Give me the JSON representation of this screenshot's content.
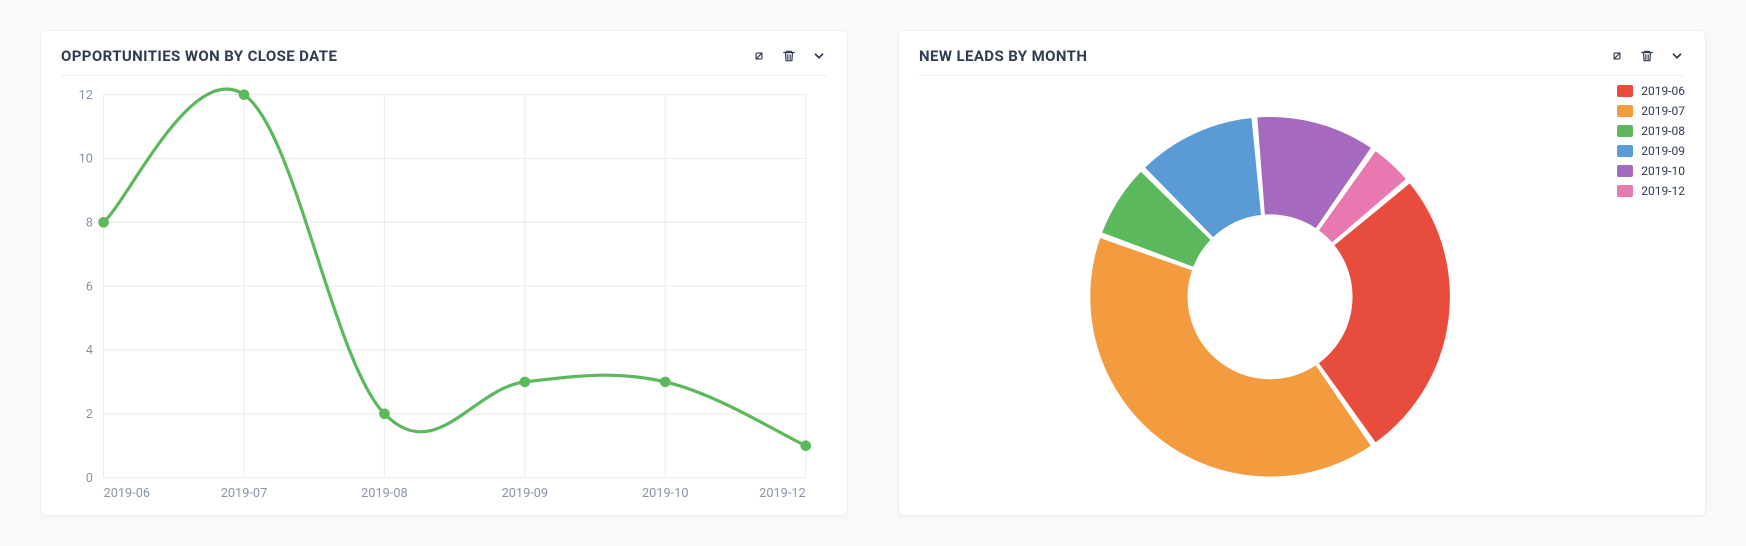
{
  "background_color": "#f8f9fb",
  "card_bg": "#ffffff",
  "title_color": "#2f3b52",
  "axis_text_color": "#8a94a6",
  "grid_color": "#e9ecf2",
  "line_chart": {
    "title": "OPPORTUNITIES WON BY CLOSE DATE",
    "type": "line",
    "categories": [
      "2019-06",
      "2019-07",
      "2019-08",
      "2019-09",
      "2019-10",
      "2019-12"
    ],
    "values": [
      8,
      12,
      2,
      3,
      3,
      1
    ],
    "ylim": [
      0,
      12
    ],
    "ytick_step": 2,
    "line_color": "#5cb85c",
    "line_width": 3,
    "marker_size": 5,
    "background_color": "#ffffff"
  },
  "donut_chart": {
    "title": "NEW LEADS BY MONTH",
    "type": "donut",
    "inner_radius_ratio": 0.45,
    "slice_gap_deg": 1.2,
    "background_color": "#ffffff",
    "start_angle_deg": 50,
    "direction": "clockwise",
    "slices": [
      {
        "label": "2019-06",
        "value": 95,
        "color": "#e74c3c"
      },
      {
        "label": "2019-07",
        "value": 145,
        "color": "#f39c3f"
      },
      {
        "label": "2019-08",
        "value": 25,
        "color": "#5cb85c"
      },
      {
        "label": "2019-09",
        "value": 40,
        "color": "#5b9bd5"
      },
      {
        "label": "2019-10",
        "value": 40,
        "color": "#a569bd"
      },
      {
        "label": "2019-12",
        "value": 15,
        "color": "#e879b0"
      }
    ]
  }
}
